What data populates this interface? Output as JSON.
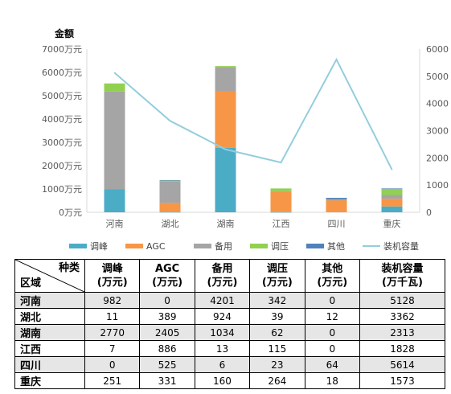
{
  "chart_data": {
    "type": "bar",
    "stacked": true,
    "title": "",
    "ylabel": "金额",
    "y2label": "",
    "categories": [
      "河南",
      "湖北",
      "湖南",
      "江西",
      "四川",
      "重庆"
    ],
    "ylim": [
      0,
      7000
    ],
    "y2lim": [
      0,
      6000
    ],
    "yticks": [
      "0万元",
      "1000万元",
      "2000万元",
      "3000万元",
      "4000万元",
      "5000万元",
      "6000万元",
      "7000万元"
    ],
    "y2ticks": [
      "0",
      "1000",
      "2000",
      "3000",
      "4000",
      "5000",
      "6000"
    ],
    "series": [
      {
        "name": "调峰",
        "values": [
          982,
          11,
          2770,
          7,
          0,
          251
        ],
        "color": "#4bacc6",
        "kind": "bar"
      },
      {
        "name": "AGC",
        "values": [
          0,
          389,
          2405,
          886,
          525,
          331
        ],
        "color": "#f79646",
        "kind": "bar"
      },
      {
        "name": "备用",
        "values": [
          4201,
          924,
          1034,
          13,
          6,
          160
        ],
        "color": "#a5a5a5",
        "kind": "bar"
      },
      {
        "name": "调压",
        "values": [
          342,
          39,
          62,
          115,
          23,
          264
        ],
        "color": "#92d050",
        "kind": "bar"
      },
      {
        "name": "其他",
        "values": [
          0,
          12,
          0,
          0,
          64,
          18
        ],
        "color": "#4f81bd",
        "kind": "bar"
      },
      {
        "name": "装机容量",
        "values": [
          5128,
          3362,
          2313,
          1828,
          5614,
          1573
        ],
        "color": "#93cddd",
        "kind": "line",
        "axis": "right"
      }
    ],
    "grid": false,
    "legend": "bottom"
  },
  "table": {
    "corner_top": "种类",
    "corner_bottom": "区域",
    "headers": [
      {
        "line1": "调峰",
        "line2": "(万元)"
      },
      {
        "line1": "AGC",
        "line2": "(万元)"
      },
      {
        "line1": "备用",
        "line2": "(万元)"
      },
      {
        "line1": "调压",
        "line2": "(万元)"
      },
      {
        "line1": "其他",
        "line2": "(万元)"
      },
      {
        "line1": "装机容量",
        "line2": "(万千瓦)"
      }
    ],
    "rows": [
      {
        "region": "河南",
        "cells": [
          "982",
          "0",
          "4201",
          "342",
          "0",
          "5128"
        ]
      },
      {
        "region": "湖北",
        "cells": [
          "11",
          "389",
          "924",
          "39",
          "12",
          "3362"
        ]
      },
      {
        "region": "湖南",
        "cells": [
          "2770",
          "2405",
          "1034",
          "62",
          "0",
          "2313"
        ]
      },
      {
        "region": "江西",
        "cells": [
          "7",
          "886",
          "13",
          "115",
          "0",
          "1828"
        ]
      },
      {
        "region": "四川",
        "cells": [
          "0",
          "525",
          "6",
          "23",
          "64",
          "5614"
        ]
      },
      {
        "region": "重庆",
        "cells": [
          "251",
          "331",
          "160",
          "264",
          "18",
          "1573"
        ]
      }
    ]
  }
}
